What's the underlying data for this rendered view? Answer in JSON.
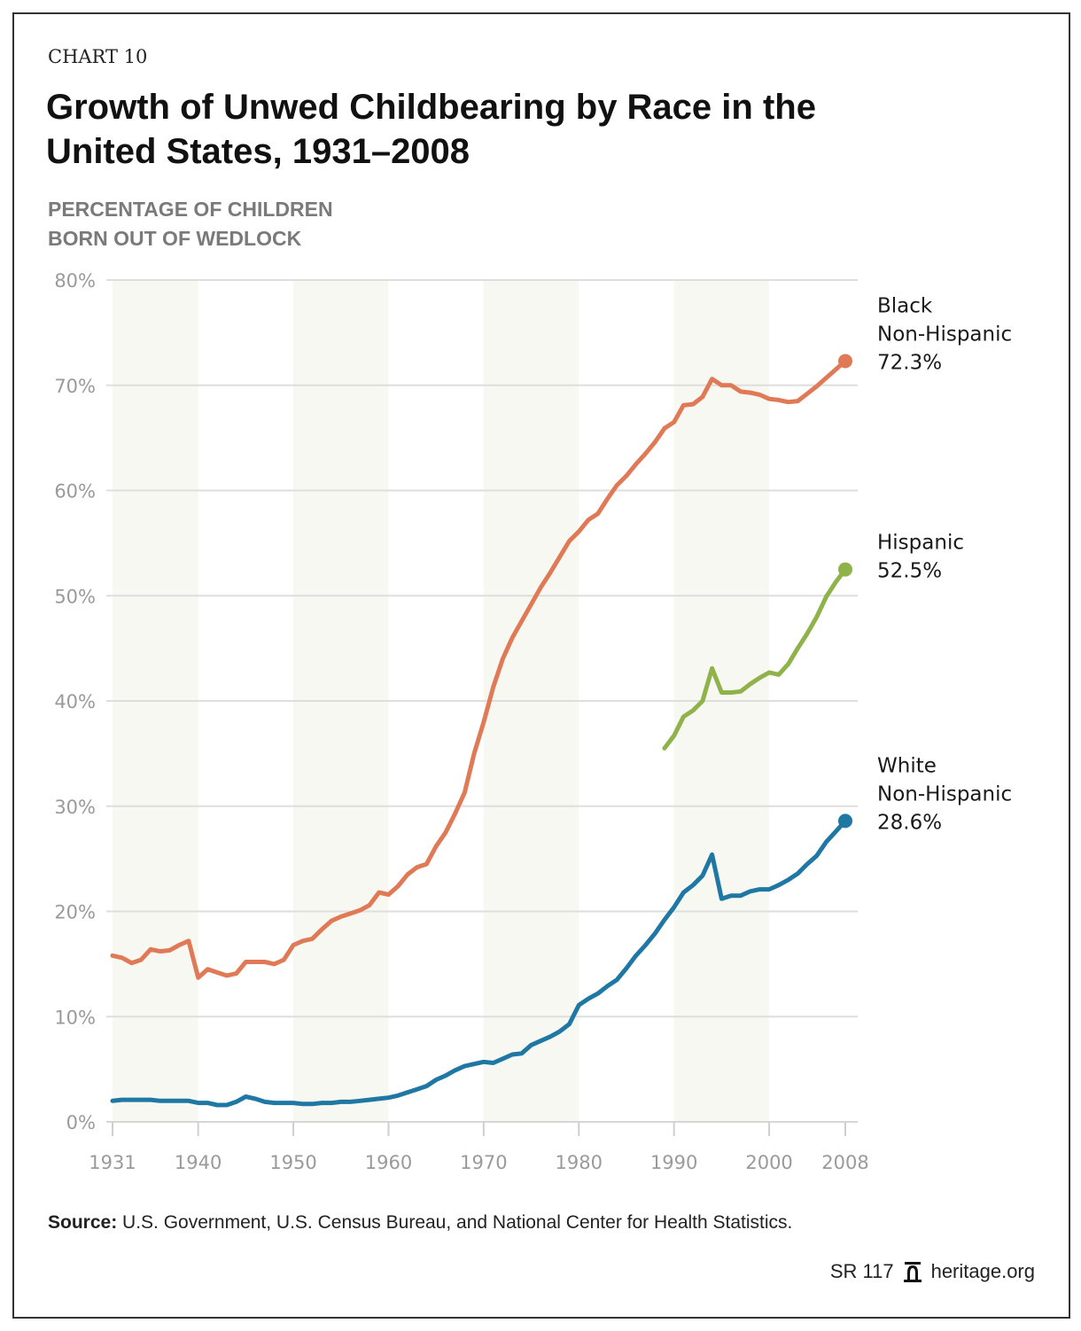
{
  "header": {
    "kicker": "CHART 10",
    "title_line1": "Growth of Unwed Childbearing by Race in the",
    "title_line2": "United States, 1931–2008",
    "subtitle_line1": "PERCENTAGE OF CHILDREN",
    "subtitle_line2": "BORN OUT OF WEDLOCK"
  },
  "footer": {
    "source_label": "Source:",
    "source_text": "U.S. Government, U.S. Census Bureau, and National Center for Health Statistics.",
    "report_id": "SR 117",
    "logo_icon": "liberty-bell-icon",
    "site": "heritage.org"
  },
  "chart_data": {
    "type": "line",
    "title": "Growth of Unwed Childbearing by Race in the United States, 1931–2008",
    "ylabel": "Percentage of children born out of wedlock",
    "xlabel": "",
    "xlim": [
      1931,
      2008
    ],
    "ylim": [
      0,
      80
    ],
    "x_ticks": [
      1931,
      1940,
      1950,
      1960,
      1970,
      1980,
      1990,
      2000,
      2008
    ],
    "y_ticks": [
      0,
      10,
      20,
      30,
      40,
      50,
      60,
      70,
      80
    ],
    "y_tick_labels": [
      "0%",
      "10%",
      "20%",
      "30%",
      "40%",
      "50%",
      "60%",
      "70%",
      "80%"
    ],
    "grid": "horizontal",
    "shaded_bands": [
      [
        1931,
        1940
      ],
      [
        1950,
        1960
      ],
      [
        1970,
        1980
      ],
      [
        1990,
        2000
      ]
    ],
    "legend": "direct-labels-right",
    "series": [
      {
        "name": "Black Non-Hispanic",
        "label_line1": "Black",
        "label_line2": "Non-Hispanic",
        "end_value_label": "72.3%",
        "color": "#e07a56",
        "x": [
          1931,
          1932,
          1933,
          1934,
          1935,
          1936,
          1937,
          1938,
          1939,
          1940,
          1941,
          1942,
          1943,
          1944,
          1945,
          1946,
          1947,
          1948,
          1949,
          1950,
          1951,
          1952,
          1953,
          1954,
          1955,
          1956,
          1957,
          1958,
          1959,
          1960,
          1961,
          1962,
          1963,
          1964,
          1965,
          1966,
          1967,
          1968,
          1969,
          1970,
          1971,
          1972,
          1973,
          1974,
          1975,
          1976,
          1977,
          1978,
          1979,
          1980,
          1981,
          1982,
          1983,
          1984,
          1985,
          1986,
          1987,
          1988,
          1989,
          1990,
          1991,
          1992,
          1993,
          1994,
          1995,
          1996,
          1997,
          1998,
          1999,
          2000,
          2001,
          2002,
          2003,
          2004,
          2005,
          2006,
          2007,
          2008
        ],
        "values": [
          15.8,
          15.6,
          15.1,
          15.4,
          16.4,
          16.2,
          16.3,
          16.8,
          17.2,
          13.7,
          14.5,
          14.2,
          13.9,
          14.1,
          15.2,
          15.2,
          15.2,
          15.0,
          15.4,
          16.8,
          17.2,
          17.4,
          18.3,
          19.1,
          19.5,
          19.8,
          20.1,
          20.6,
          21.8,
          21.6,
          22.4,
          23.5,
          24.2,
          24.5,
          26.2,
          27.5,
          29.3,
          31.3,
          35.0,
          38.0,
          41.3,
          44.0,
          46.0,
          47.6,
          49.2,
          50.8,
          52.2,
          53.7,
          55.2,
          56.1,
          57.2,
          57.8,
          59.2,
          60.5,
          61.4,
          62.5,
          63.5,
          64.6,
          65.9,
          66.5,
          68.1,
          68.2,
          68.9,
          70.6,
          70.0,
          70.0,
          69.4,
          69.3,
          69.1,
          68.7,
          68.6,
          68.4,
          68.5,
          69.2,
          69.9,
          70.7,
          71.5,
          72.3
        ]
      },
      {
        "name": "Hispanic",
        "label_line1": "Hispanic",
        "label_line2": "",
        "end_value_label": "52.5%",
        "color": "#8fb34a",
        "x": [
          1989,
          1990,
          1991,
          1992,
          1993,
          1994,
          1995,
          1996,
          1997,
          1998,
          1999,
          2000,
          2001,
          2002,
          2003,
          2004,
          2005,
          2006,
          2007,
          2008
        ],
        "values": [
          35.5,
          36.7,
          38.5,
          39.1,
          40.0,
          43.1,
          40.8,
          40.8,
          40.9,
          41.6,
          42.2,
          42.7,
          42.5,
          43.5,
          45.0,
          46.4,
          48.0,
          49.9,
          51.3,
          52.5
        ]
      },
      {
        "name": "White Non-Hispanic",
        "label_line1": "White",
        "label_line2": "Non-Hispanic",
        "end_value_label": "28.6%",
        "color": "#1f78a4",
        "x": [
          1931,
          1932,
          1933,
          1934,
          1935,
          1936,
          1937,
          1938,
          1939,
          1940,
          1941,
          1942,
          1943,
          1944,
          1945,
          1946,
          1947,
          1948,
          1949,
          1950,
          1951,
          1952,
          1953,
          1954,
          1955,
          1956,
          1957,
          1958,
          1959,
          1960,
          1961,
          1962,
          1963,
          1964,
          1965,
          1966,
          1967,
          1968,
          1969,
          1970,
          1971,
          1972,
          1973,
          1974,
          1975,
          1976,
          1977,
          1978,
          1979,
          1980,
          1981,
          1982,
          1983,
          1984,
          1985,
          1986,
          1987,
          1988,
          1989,
          1990,
          1991,
          1992,
          1993,
          1994,
          1995,
          1996,
          1997,
          1998,
          1999,
          2000,
          2001,
          2002,
          2003,
          2004,
          2005,
          2006,
          2007,
          2008
        ],
        "values": [
          2.0,
          2.1,
          2.1,
          2.1,
          2.1,
          2.0,
          2.0,
          2.0,
          2.0,
          1.8,
          1.8,
          1.6,
          1.6,
          1.9,
          2.4,
          2.2,
          1.9,
          1.8,
          1.8,
          1.8,
          1.7,
          1.7,
          1.8,
          1.8,
          1.9,
          1.9,
          2.0,
          2.1,
          2.2,
          2.3,
          2.5,
          2.8,
          3.1,
          3.4,
          4.0,
          4.4,
          4.9,
          5.3,
          5.5,
          5.7,
          5.6,
          6.0,
          6.4,
          6.5,
          7.3,
          7.7,
          8.1,
          8.6,
          9.3,
          11.1,
          11.7,
          12.2,
          12.9,
          13.5,
          14.6,
          15.8,
          16.8,
          17.9,
          19.2,
          20.4,
          21.8,
          22.5,
          23.4,
          25.4,
          21.2,
          21.5,
          21.5,
          21.9,
          22.1,
          22.1,
          22.5,
          23.0,
          23.6,
          24.5,
          25.3,
          26.6,
          27.6,
          28.6
        ]
      }
    ]
  }
}
